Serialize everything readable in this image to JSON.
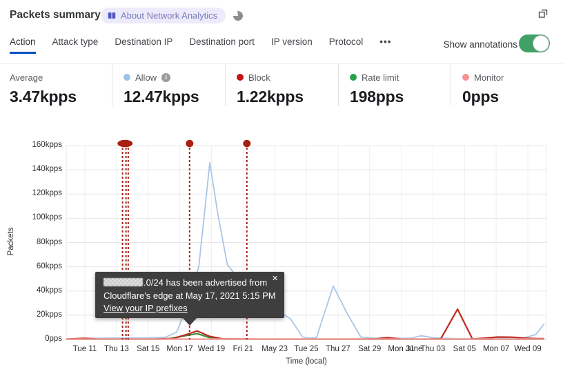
{
  "header": {
    "title": "Packets summary",
    "badge_label": "About Network Analytics",
    "badge_color": "#5457c4",
    "popout_icon": "overlapping-windows"
  },
  "tabs": {
    "items": [
      {
        "label": "Action",
        "active": true
      },
      {
        "label": "Attack type",
        "active": false
      },
      {
        "label": "Destination IP",
        "active": false
      },
      {
        "label": "Destination port",
        "active": false
      },
      {
        "label": "IP version",
        "active": false
      },
      {
        "label": "Protocol",
        "active": false
      },
      {
        "label": "•••",
        "active": false,
        "more": true
      }
    ],
    "active_color": "#0051c3",
    "show_annotations_label": "Show annotations",
    "annotations_toggle_on": true,
    "toggle_color": "#40a065"
  },
  "stats": [
    {
      "label": "Average",
      "value": "3.47kpps",
      "dot": null,
      "info": false
    },
    {
      "label": "Allow",
      "value": "12.47kpps",
      "dot": "#9fc2e7",
      "info": true
    },
    {
      "label": "Block",
      "value": "1.22kpps",
      "dot": "#c11414",
      "info": false
    },
    {
      "label": "Rate limit",
      "value": "198pps",
      "dot": "#27a14b",
      "info": false
    },
    {
      "label": "Monitor",
      "value": "0pps",
      "dot": "#f59292",
      "info": false
    }
  ],
  "tooltip": {
    "line1_suffix": ".0/24 has been advertised from",
    "line2": "Cloudflare's edge at May 17, 2021 5:15 PM",
    "link_label": "View your IP prefixes",
    "close_label": "×"
  },
  "chart_data": {
    "type": "line",
    "title": "Packets summary",
    "xlabel": "Time (local)",
    "ylabel": "Packets",
    "ylim": [
      0,
      160
    ],
    "unit": "kpps",
    "grid": true,
    "x_tick_labels": [
      "Tue 11",
      "Thu 13",
      "Sat 15",
      "Mon 17",
      "Wed 19",
      "Fri 21",
      "May 23",
      "Tue 25",
      "Thu 27",
      "Sat 29",
      "Mon 31",
      "Thu 03",
      "Sat 05",
      "Mon 07",
      "Wed 09"
    ],
    "x_overlay_label": {
      "label": "June",
      "t": 10.4
    },
    "y_ticks": [
      {
        "v": 0,
        "label": "0pps"
      },
      {
        "v": 20,
        "label": "20kpps"
      },
      {
        "v": 40,
        "label": "40kpps"
      },
      {
        "v": 60,
        "label": "60kpps"
      },
      {
        "v": 80,
        "label": "80kpps"
      },
      {
        "v": 100,
        "label": "100kpps"
      },
      {
        "v": 120,
        "label": "120kpps"
      },
      {
        "v": 140,
        "label": "140kpps"
      },
      {
        "v": 160,
        "label": "160kpps"
      }
    ],
    "series": [
      {
        "name": "Allow",
        "color": "#a9c6e8",
        "width": 1.8,
        "points": [
          [
            -0.59,
            0.4
          ],
          [
            0,
            0.8
          ],
          [
            0.5,
            1.0
          ],
          [
            1,
            1.2
          ],
          [
            1.5,
            1.2
          ],
          [
            2,
            1.3
          ],
          [
            2.55,
            1.8
          ],
          [
            2.9,
            6
          ],
          [
            3.3,
            32
          ],
          [
            3.6,
            60
          ],
          [
            3.95,
            146
          ],
          [
            4.2,
            104
          ],
          [
            4.5,
            62
          ],
          [
            5.2,
            38
          ],
          [
            6.0,
            25
          ],
          [
            6.5,
            17
          ],
          [
            6.88,
            2
          ],
          [
            7.1,
            1
          ],
          [
            7.32,
            1.5
          ],
          [
            7.85,
            44
          ],
          [
            8.3,
            21
          ],
          [
            8.72,
            2
          ],
          [
            9.3,
            0.8
          ],
          [
            10.3,
            1
          ],
          [
            10.62,
            3
          ],
          [
            11.05,
            1.3
          ],
          [
            11.8,
            0.6
          ],
          [
            12.6,
            0.7
          ],
          [
            13.3,
            0.9
          ],
          [
            13.9,
            1.5
          ],
          [
            14.25,
            4
          ],
          [
            14.52,
            13
          ]
        ]
      },
      {
        "name": "Rate limit",
        "color": "#3e8f3e",
        "width": 2.2,
        "points": [
          [
            -0.59,
            0.05
          ],
          [
            2.55,
            0.1
          ],
          [
            3.0,
            2.2
          ],
          [
            3.55,
            4.8
          ],
          [
            4.0,
            1
          ],
          [
            4.35,
            0.1
          ],
          [
            8,
            0.05
          ],
          [
            14.52,
            0.05
          ]
        ]
      },
      {
        "name": "Block",
        "color": "#c0281c",
        "width": 2.2,
        "points": [
          [
            -0.59,
            0.3
          ],
          [
            0,
            0.9
          ],
          [
            0.4,
            0.4
          ],
          [
            1.2,
            0.3
          ],
          [
            2.2,
            0.35
          ],
          [
            2.8,
            0.8
          ],
          [
            3.2,
            4
          ],
          [
            3.55,
            7
          ],
          [
            3.95,
            2.5
          ],
          [
            4.35,
            0.5
          ],
          [
            5.5,
            0.3
          ],
          [
            7,
            0.3
          ],
          [
            8.6,
            0.3
          ],
          [
            9.2,
            0.5
          ],
          [
            9.55,
            1.5
          ],
          [
            10,
            0.35
          ],
          [
            10.8,
            0.3
          ],
          [
            11.25,
            0.5
          ],
          [
            11.78,
            25
          ],
          [
            12.25,
            0.4
          ],
          [
            12.65,
            1.1
          ],
          [
            13.05,
            2
          ],
          [
            13.5,
            1.9
          ],
          [
            13.95,
            1
          ],
          [
            14.3,
            0.7
          ],
          [
            14.52,
            0.6
          ]
        ]
      },
      {
        "name": "Monitor",
        "color": "#f2a29e",
        "width": 2.5,
        "points": [
          [
            -0.59,
            0.25
          ],
          [
            14.52,
            0.25
          ]
        ]
      }
    ],
    "annotations": {
      "color": "#a82012",
      "lines_t": [
        1.19,
        1.3,
        1.37,
        3.31,
        5.12
      ],
      "dots": [
        {
          "t": 1.27,
          "rx": 11
        },
        {
          "t": 3.31,
          "rx": 5.5
        },
        {
          "t": 5.12,
          "rx": 5.5
        }
      ]
    },
    "legend_position": "top-stats-row"
  }
}
